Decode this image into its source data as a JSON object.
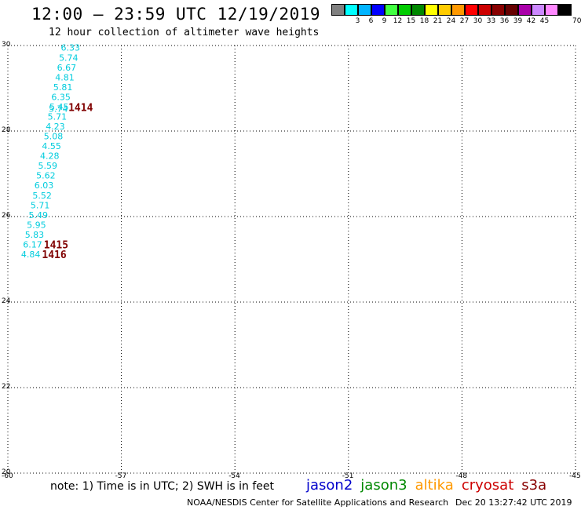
{
  "header": {
    "title": "12:00 — 23:59 UTC 12/19/2019",
    "subtitle": "12 hour collection of altimeter wave heights"
  },
  "legend": {
    "unit": "70 (ft)",
    "items": [
      {
        "label": "",
        "color": "#808080"
      },
      {
        "label": "3",
        "color": "#00ffff"
      },
      {
        "label": "6",
        "color": "#00b4ff"
      },
      {
        "label": "9",
        "color": "#0000ff"
      },
      {
        "label": "12",
        "color": "#40ff40"
      },
      {
        "label": "15",
        "color": "#00cc00"
      },
      {
        "label": "18",
        "color": "#008800"
      },
      {
        "label": "21",
        "color": "#ffff00"
      },
      {
        "label": "24",
        "color": "#ffcc00"
      },
      {
        "label": "27",
        "color": "#ff9900"
      },
      {
        "label": "30",
        "color": "#ff0000"
      },
      {
        "label": "33",
        "color": "#cc0000"
      },
      {
        "label": "36",
        "color": "#880000"
      },
      {
        "label": "39",
        "color": "#660000"
      },
      {
        "label": "42",
        "color": "#aa00aa"
      },
      {
        "label": "45",
        "color": "#cc88ff"
      },
      {
        "label": "",
        "color": "#ff88ff"
      },
      {
        "label": "",
        "color": "#000000"
      }
    ]
  },
  "map": {
    "lon_range": [
      -60,
      -45
    ],
    "lat_range": [
      20,
      30
    ],
    "x_ticks": [
      {
        "value": -60,
        "label": "-60"
      },
      {
        "value": -57,
        "label": "-57"
      },
      {
        "value": -54,
        "label": "-54"
      },
      {
        "value": -51,
        "label": "-51"
      },
      {
        "value": -48,
        "label": "-48"
      },
      {
        "value": -45,
        "label": "-45"
      }
    ],
    "y_ticks": [
      {
        "value": 30,
        "label": "30"
      },
      {
        "value": 28,
        "label": "28"
      },
      {
        "value": 26,
        "label": "26"
      },
      {
        "value": 24,
        "label": "24"
      },
      {
        "value": 22,
        "label": "22"
      },
      {
        "value": 20,
        "label": "20"
      }
    ],
    "grid": true,
    "grid_color": "#000000",
    "point_color": "#00ccdd",
    "track_color": "#800000",
    "swh_points": [
      {
        "lon": -58.6,
        "lat": 29.95,
        "label": "6.33"
      },
      {
        "lon": -58.65,
        "lat": 29.72,
        "label": "5.74"
      },
      {
        "lon": -58.7,
        "lat": 29.49,
        "label": "6.67"
      },
      {
        "lon": -58.75,
        "lat": 29.26,
        "label": "4.81"
      },
      {
        "lon": -58.8,
        "lat": 29.03,
        "label": "5.81"
      },
      {
        "lon": -58.85,
        "lat": 28.8,
        "label": "6.35"
      },
      {
        "lon": -58.9,
        "lat": 28.57,
        "label": "5.45"
      },
      {
        "lon": -58.92,
        "lat": 28.52,
        "label": "5.74"
      },
      {
        "lon": -58.95,
        "lat": 28.34,
        "label": "5.71"
      },
      {
        "lon": -59.0,
        "lat": 28.11,
        "label": "4.23"
      },
      {
        "lon": -59.05,
        "lat": 27.88,
        "label": "5.08"
      },
      {
        "lon": -59.1,
        "lat": 27.65,
        "label": "4.55"
      },
      {
        "lon": -59.15,
        "lat": 27.42,
        "label": "4.28"
      },
      {
        "lon": -59.2,
        "lat": 27.19,
        "label": "5.59"
      },
      {
        "lon": -59.25,
        "lat": 26.96,
        "label": "5.62"
      },
      {
        "lon": -59.3,
        "lat": 26.73,
        "label": "6.03"
      },
      {
        "lon": -59.35,
        "lat": 26.5,
        "label": "5.52"
      },
      {
        "lon": -59.4,
        "lat": 26.27,
        "label": "5.71"
      },
      {
        "lon": -59.45,
        "lat": 26.04,
        "label": "5.49"
      },
      {
        "lon": -59.5,
        "lat": 25.81,
        "label": "5.95"
      },
      {
        "lon": -59.55,
        "lat": 25.58,
        "label": "5.83"
      },
      {
        "lon": -59.6,
        "lat": 25.35,
        "label": "6.17"
      },
      {
        "lon": -59.65,
        "lat": 25.12,
        "label": "4.84"
      }
    ],
    "track_labels": [
      {
        "lon": -58.4,
        "lat": 28.56,
        "label": "1414"
      },
      {
        "lon": -59.05,
        "lat": 25.35,
        "label": "1415"
      },
      {
        "lon": -59.1,
        "lat": 25.12,
        "label": "1416"
      }
    ]
  },
  "footer": {
    "note": "note: 1) Time is in UTC; 2) SWH is in feet",
    "satellites": [
      {
        "name": "jason2",
        "color": "#0000cc"
      },
      {
        "name": "jason3",
        "color": "#008800"
      },
      {
        "name": "altika",
        "color": "#ff9900"
      },
      {
        "name": "cryosat",
        "color": "#cc0000"
      },
      {
        "name": "s3a",
        "color": "#880000"
      }
    ],
    "credit": "NOAA/NESDIS Center for Satellite Applications and Research",
    "timestamp": "Dec 20 13:27:42 UTC 2019"
  }
}
